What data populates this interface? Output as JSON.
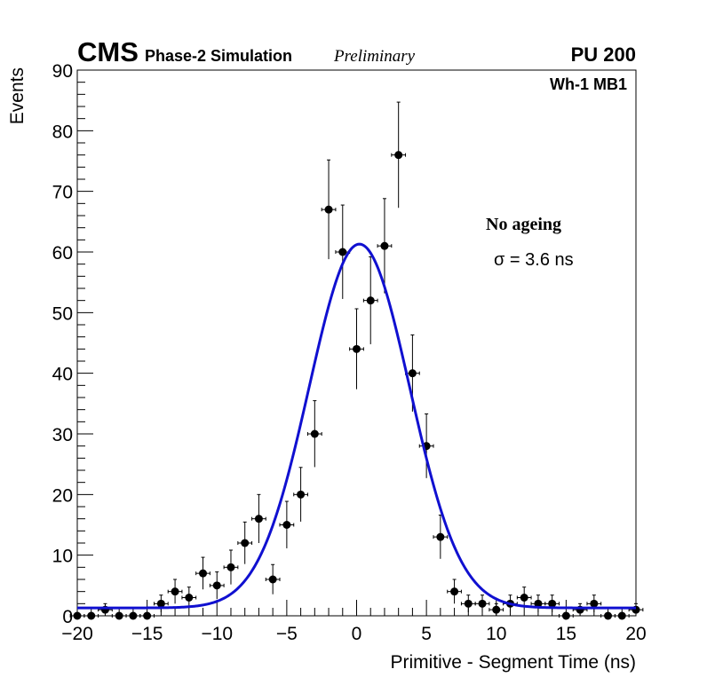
{
  "chart_data": {
    "type": "scatter",
    "title": "",
    "xlabel": "Primitive - Segment Time (ns)",
    "ylabel": "Events",
    "xlim": [
      -20,
      20
    ],
    "ylim": [
      0,
      90
    ],
    "x_ticks": [
      -20,
      -15,
      -10,
      -5,
      0,
      5,
      10,
      15,
      20
    ],
    "x_tick_labels": [
      "−20",
      "−15",
      "−10",
      "−5",
      "0",
      "5",
      "10",
      "15",
      "20"
    ],
    "y_ticks": [
      0,
      10,
      20,
      30,
      40,
      50,
      60,
      70,
      80,
      90
    ],
    "y_tick_labels": [
      "0",
      "10",
      "20",
      "30",
      "40",
      "50",
      "60",
      "70",
      "80",
      "90"
    ],
    "grid": false,
    "series": [
      {
        "name": "Data",
        "marker": "circle",
        "color": "#000000",
        "x": [
          -20,
          -19,
          -18,
          -17,
          -16,
          -15,
          -14,
          -13,
          -12,
          -11,
          -10,
          -9,
          -8,
          -7,
          -6,
          -5,
          -4,
          -3,
          -2,
          -1,
          0,
          1,
          2,
          3,
          4,
          5,
          6,
          7,
          8,
          9,
          10,
          11,
          12,
          13,
          14,
          15,
          16,
          17,
          18,
          19,
          20
        ],
        "values": [
          0,
          0,
          1,
          0,
          0,
          0,
          2,
          4,
          3,
          7,
          5,
          8,
          12,
          16,
          6,
          15,
          20,
          30,
          67,
          60,
          44,
          52,
          61,
          76,
          40,
          28,
          13,
          4,
          2,
          2,
          1,
          2,
          3,
          2,
          2,
          0,
          1,
          2,
          0,
          0,
          1
        ]
      },
      {
        "name": "Gaussian fit",
        "type": "line",
        "color": "#1010d0",
        "amplitude": 60,
        "mean": 0.2,
        "sigma": 3.6,
        "baseline": 1.3
      }
    ],
    "annotations": {
      "experiment": "CMS",
      "status": "Phase-2 Simulation",
      "preliminary": "Preliminary",
      "pileup": "PU 200",
      "region": "Wh-1 MB1",
      "condition": "No ageing",
      "resolution": "σ = 3.6 ns"
    }
  }
}
